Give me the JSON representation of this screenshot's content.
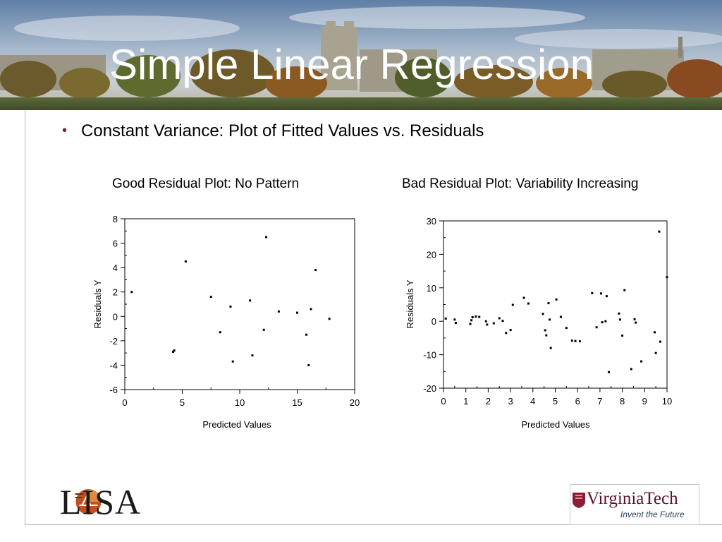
{
  "slide": {
    "title": "Simple Linear Regression",
    "bullet": "Constant Variance:  Plot of Fitted Values vs. Residuals"
  },
  "logos": {
    "left_name": "LISA",
    "right_name": "VirginiaTech",
    "right_tagline": "Invent the Future"
  },
  "colors": {
    "bullet": "#7a1f3a",
    "vt_maroon": "#5b1426",
    "vt_navy": "#24405c"
  },
  "chart_data": [
    {
      "type": "scatter",
      "title": "Good Residual Plot:  No Pattern",
      "xlabel": "Predicted Values",
      "ylabel": "Residuals Y",
      "xlim": [
        0,
        20
      ],
      "ylim": [
        -6,
        8
      ],
      "xticks": [
        0,
        5,
        10,
        15,
        20
      ],
      "yticks": [
        -6,
        -4,
        -2,
        0,
        2,
        4,
        6,
        8
      ],
      "grid": false,
      "points": [
        [
          0.6,
          2.0
        ],
        [
          4.2,
          -2.9
        ],
        [
          4.3,
          -2.8
        ],
        [
          5.3,
          4.5
        ],
        [
          7.5,
          1.6
        ],
        [
          8.3,
          -1.3
        ],
        [
          9.2,
          0.8
        ],
        [
          9.4,
          -3.7
        ],
        [
          10.9,
          1.3
        ],
        [
          11.1,
          -3.2
        ],
        [
          12.1,
          -1.1
        ],
        [
          12.3,
          6.5
        ],
        [
          13.4,
          0.4
        ],
        [
          15.0,
          0.3
        ],
        [
          15.8,
          -1.5
        ],
        [
          16.0,
          -4.0
        ],
        [
          16.2,
          0.6
        ],
        [
          16.6,
          3.8
        ],
        [
          17.8,
          -0.2
        ]
      ]
    },
    {
      "type": "scatter",
      "title": "Bad Residual Plot: Variability Increasing",
      "xlabel": "Predicted Values",
      "ylabel": "Residuals Y",
      "xlim": [
        0,
        10
      ],
      "ylim": [
        -20,
        30
      ],
      "xticks": [
        0,
        1,
        2,
        3,
        4,
        5,
        6,
        7,
        8,
        9,
        10
      ],
      "yticks": [
        -20,
        -10,
        0,
        10,
        20,
        30
      ],
      "grid": false,
      "points": [
        [
          0.1,
          0.8
        ],
        [
          0.5,
          0.5
        ],
        [
          0.55,
          -0.5
        ],
        [
          1.2,
          -0.8
        ],
        [
          1.25,
          0.3
        ],
        [
          1.3,
          1.2
        ],
        [
          1.45,
          1.4
        ],
        [
          1.6,
          1.3
        ],
        [
          1.9,
          0.0
        ],
        [
          1.95,
          -1.0
        ],
        [
          2.25,
          -0.6
        ],
        [
          2.5,
          0.9
        ],
        [
          2.65,
          0.1
        ],
        [
          2.8,
          -3.5
        ],
        [
          3.0,
          -2.6
        ],
        [
          3.1,
          4.9
        ],
        [
          3.6,
          7.0
        ],
        [
          3.8,
          5.3
        ],
        [
          4.45,
          2.2
        ],
        [
          4.55,
          -2.7
        ],
        [
          4.6,
          -4.2
        ],
        [
          4.7,
          5.4
        ],
        [
          4.75,
          0.5
        ],
        [
          4.8,
          -8.0
        ],
        [
          5.05,
          6.5
        ],
        [
          5.25,
          1.3
        ],
        [
          5.5,
          -2.0
        ],
        [
          5.75,
          -5.8
        ],
        [
          5.9,
          -5.9
        ],
        [
          6.1,
          -6.0
        ],
        [
          6.65,
          8.4
        ],
        [
          6.85,
          -1.8
        ],
        [
          7.05,
          8.3
        ],
        [
          7.1,
          -0.3
        ],
        [
          7.3,
          7.5
        ],
        [
          7.25,
          0.0
        ],
        [
          7.4,
          -15.2
        ],
        [
          7.85,
          2.3
        ],
        [
          7.9,
          0.5
        ],
        [
          8.0,
          -4.3
        ],
        [
          8.1,
          9.3
        ],
        [
          8.4,
          -14.3
        ],
        [
          8.55,
          0.6
        ],
        [
          8.6,
          -0.4
        ],
        [
          8.85,
          -12.0
        ],
        [
          9.45,
          -3.3
        ],
        [
          9.5,
          -9.5
        ],
        [
          9.65,
          26.8
        ],
        [
          9.7,
          -6.1
        ],
        [
          10.0,
          13.2
        ]
      ]
    }
  ]
}
